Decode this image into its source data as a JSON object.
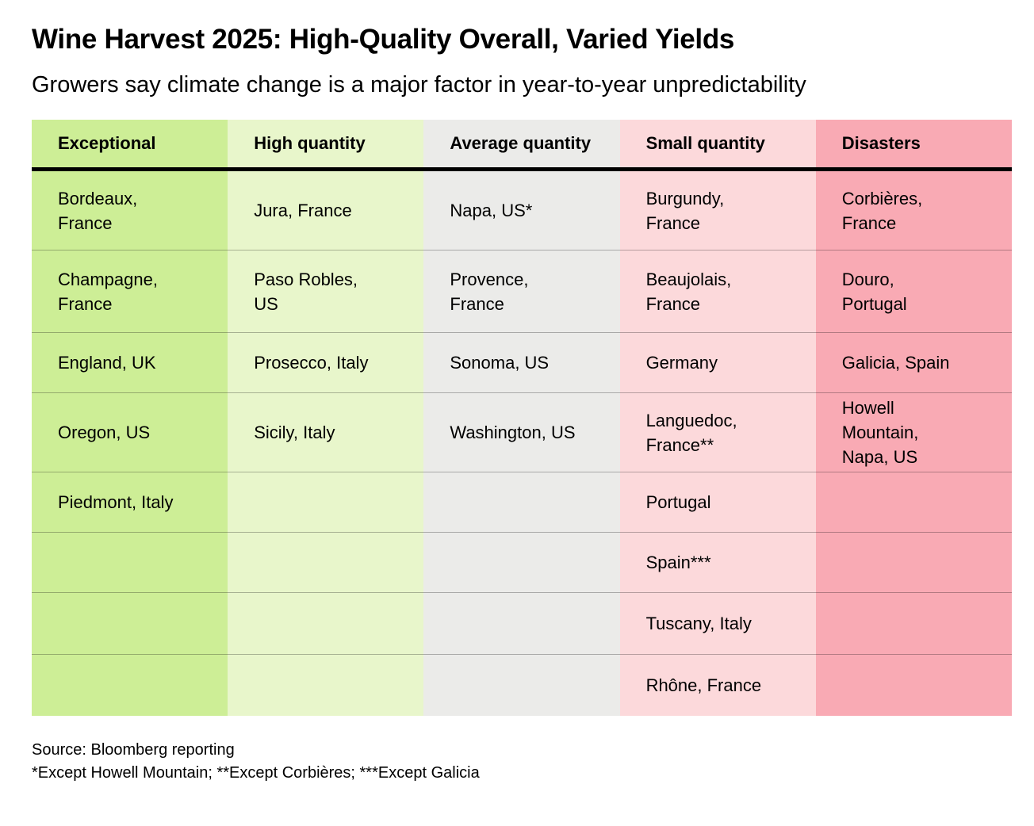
{
  "header": {
    "title": "Wine Harvest 2025: High-Quality Overall, Varied Yields",
    "subtitle": "Growers say climate change is a major factor in year-to-year unpredictability"
  },
  "chart_data": {
    "type": "table",
    "title": "Wine Harvest 2025: High-Quality Overall, Varied Yields",
    "subtitle": "Growers say climate change is a major factor in year-to-year unpredictability",
    "columns": [
      {
        "label": "Exceptional",
        "color": "#cdee96",
        "regions": [
          "Bordeaux, France",
          "Champagne, France",
          "England, UK",
          "Oregon, US",
          "Piedmont, Italy"
        ]
      },
      {
        "label": "High quantity",
        "color": "#e8f6cb",
        "regions": [
          "Jura, France",
          "Paso Robles, US",
          "Prosecco, Italy",
          "Sicily, Italy"
        ]
      },
      {
        "label": "Average quantity",
        "color": "#ebebe9",
        "regions": [
          "Napa, US*",
          "Provence, France",
          "Sonoma, US",
          "Washington, US"
        ]
      },
      {
        "label": "Small quantity",
        "color": "#fcd9db",
        "regions": [
          "Burgundy, France",
          "Beaujolais, France",
          "Germany",
          "Languedoc, France**",
          "Portugal",
          "Spain***",
          "Tuscany, Italy",
          "Rhône, France"
        ]
      },
      {
        "label": "Disasters",
        "color": "#f9aab4",
        "regions": [
          "Corbières, France",
          "Douro, Portugal",
          "Galicia, Spain",
          "Howell Mountain, Napa, US"
        ]
      }
    ],
    "source": "Source: Bloomberg reporting",
    "footnotes": "*Except Howell Mountain; **Except Corbières; ***Except Galicia"
  },
  "grid": {
    "rows": [
      [
        "Bordeaux,\nFrance",
        "Jura, France",
        "Napa, US*",
        "Burgundy,\nFrance",
        "Corbières,\nFrance"
      ],
      [
        "Champagne,\nFrance",
        "Paso Robles,\nUS",
        "Provence,\nFrance",
        "Beaujolais,\nFrance",
        "Douro,\nPortugal"
      ],
      [
        "England, UK",
        "Prosecco, Italy",
        "Sonoma, US",
        "Germany",
        "Galicia, Spain"
      ],
      [
        "Oregon, US",
        "Sicily, Italy",
        "Washington, US",
        "Languedoc,\nFrance**",
        "Howell Mountain,\nNapa, US"
      ],
      [
        "Piedmont, Italy",
        "",
        "",
        "Portugal",
        ""
      ],
      [
        "",
        "",
        "",
        "Spain***",
        ""
      ],
      [
        "",
        "",
        "",
        "Tuscany, Italy",
        ""
      ],
      [
        "",
        "",
        "",
        "Rhône, France",
        ""
      ]
    ]
  },
  "footer": {
    "source": "Source: Bloomberg reporting",
    "notes": "*Except Howell Mountain; **Except Corbières; ***Except Galicia"
  }
}
